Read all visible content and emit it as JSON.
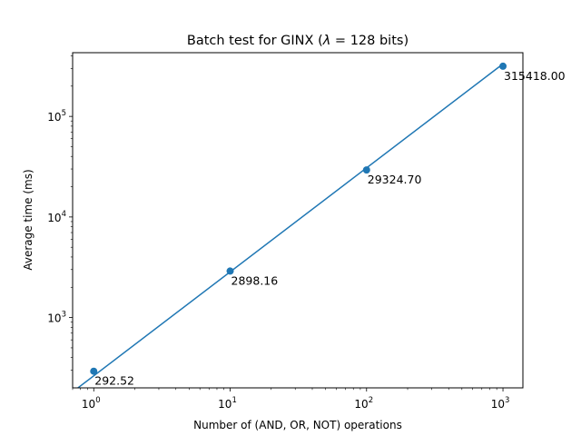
{
  "chart_data": {
    "type": "line",
    "title": "Batch test for GINX (λ = 128 bits)",
    "title_parts": {
      "prefix": "Batch test for GINX (",
      "symbol": "λ",
      "suffix": " = 128 bits)"
    },
    "xlabel": "Number of (AND, OR, NOT) operations",
    "ylabel": "Average time (ms)",
    "x_scale": "log",
    "y_scale": "log",
    "xlim": [
      0.7,
      1400
    ],
    "ylim": [
      200,
      430000
    ],
    "x_ticks": [
      {
        "value": 1,
        "base": "10",
        "exp": "0"
      },
      {
        "value": 10,
        "base": "10",
        "exp": "1"
      },
      {
        "value": 100,
        "base": "10",
        "exp": "2"
      },
      {
        "value": 1000,
        "base": "10",
        "exp": "3"
      }
    ],
    "y_ticks": [
      {
        "value": 1000,
        "base": "10",
        "exp": "3"
      },
      {
        "value": 10000,
        "base": "10",
        "exp": "4"
      },
      {
        "value": 100000,
        "base": "10",
        "exp": "5"
      }
    ],
    "grid": false,
    "legend": "none",
    "series": [
      {
        "color": "#1f77b4",
        "marker": "circle",
        "fit_line": {
          "slope_loglog": 1.0336,
          "intercept_at_1": 263.5
        },
        "points": [
          {
            "x": 1,
            "y": 292.52,
            "label": "292.52"
          },
          {
            "x": 10,
            "y": 2898.16,
            "label": "2898.16"
          },
          {
            "x": 100,
            "y": 29324.7,
            "label": "29324.70"
          },
          {
            "x": 1000,
            "y": 315418.0,
            "label": "315418.00"
          }
        ]
      }
    ]
  }
}
